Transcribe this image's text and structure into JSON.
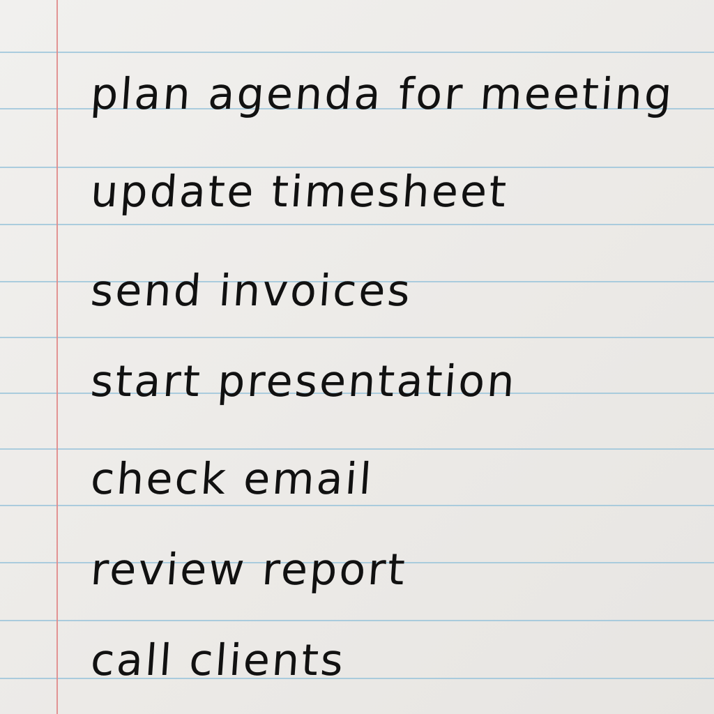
{
  "page": {
    "colors": {
      "paper": "#eeecea",
      "rule_line": "#9ec6da",
      "margin_line": "#e08a8a",
      "ink": "#111111"
    }
  },
  "list": {
    "items": [
      {
        "text": "plan agenda for meeting"
      },
      {
        "text": "update timesheet"
      },
      {
        "text": "send invoices"
      },
      {
        "text": "start presentation"
      },
      {
        "text": "check email"
      },
      {
        "text": "review report"
      },
      {
        "text": "call clients"
      }
    ]
  }
}
